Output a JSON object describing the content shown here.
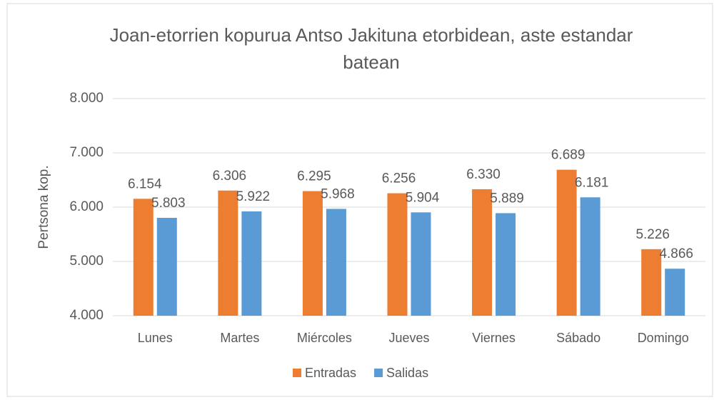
{
  "chart_data": {
    "type": "bar",
    "title": "Joan-etorrien kopurua Antso Jakituna etorbidean, aste estandar batean",
    "y_label": "Pertsona kop.",
    "categories": [
      "Lunes",
      "Martes",
      "Miércoles",
      "Jueves",
      "Viernes",
      "Sábado",
      "Domingo"
    ],
    "series": [
      {
        "name": "Entradas",
        "color": "#ed7d31",
        "values": [
          6154,
          6306,
          6295,
          6256,
          6330,
          6689,
          5226
        ],
        "value_labels": [
          "6.154",
          "6.306",
          "6.295",
          "6.256",
          "6.330",
          "6.689",
          "5.226"
        ]
      },
      {
        "name": "Salidas",
        "color": "#5b9bd5",
        "values": [
          5803,
          5922,
          5968,
          5904,
          5889,
          6181,
          4866
        ],
        "value_labels": [
          "5.803",
          "5.922",
          "5.968",
          "5.904",
          "5.889",
          "6.181",
          "4.866"
        ]
      }
    ],
    "ylim": [
      4000,
      8000
    ],
    "yticks": [
      {
        "value": 4000,
        "label": "4.000"
      },
      {
        "value": 5000,
        "label": "5.000"
      },
      {
        "value": 6000,
        "label": "6.000"
      },
      {
        "value": 7000,
        "label": "7.000"
      },
      {
        "value": 8000,
        "label": "8.000"
      }
    ],
    "grid": true,
    "legend": "bottom"
  }
}
